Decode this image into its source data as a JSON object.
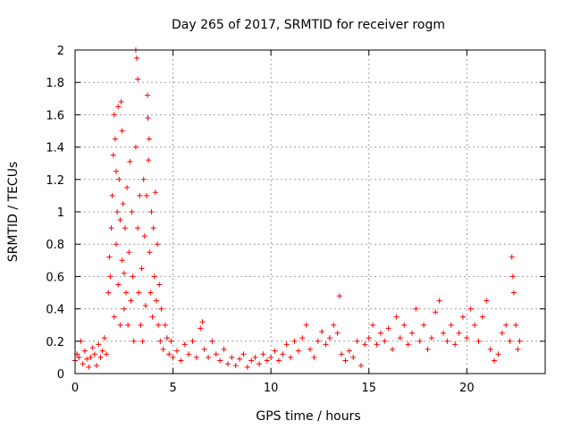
{
  "chart_data": {
    "type": "scatter",
    "title": "Day 265 of 2017, SRMTID for receiver rogm",
    "xlabel": "GPS time / hours",
    "ylabel": "SRMTID / TECUs",
    "xlim": [
      0,
      24
    ],
    "ylim": [
      0,
      2
    ],
    "grid": true,
    "marker": "plus",
    "color": "#ff0000",
    "x_ticks": [
      {
        "value": 0,
        "label": "0"
      },
      {
        "value": 5,
        "label": "5"
      },
      {
        "value": 10,
        "label": "10"
      },
      {
        "value": 15,
        "label": "15"
      },
      {
        "value": 20,
        "label": "20"
      }
    ],
    "y_ticks": [
      {
        "value": 0,
        "label": "0"
      },
      {
        "value": 0.2,
        "label": "0.2"
      },
      {
        "value": 0.4,
        "label": "0.4"
      },
      {
        "value": 0.6,
        "label": "0.6"
      },
      {
        "value": 0.8,
        "label": "0.8"
      },
      {
        "value": 1,
        "label": "1"
      },
      {
        "value": 1.2,
        "label": "1.2"
      },
      {
        "value": 1.4,
        "label": "1.4"
      },
      {
        "value": 1.6,
        "label": "1.6"
      },
      {
        "value": 1.8,
        "label": "1.8"
      },
      {
        "value": 2,
        "label": "2"
      }
    ],
    "series": [
      {
        "name": "SRMTID",
        "points": [
          [
            0.0,
            0.08
          ],
          [
            0.1,
            0.12
          ],
          [
            0.2,
            0.1
          ],
          [
            0.3,
            0.2
          ],
          [
            0.4,
            0.06
          ],
          [
            0.5,
            0.14
          ],
          [
            0.6,
            0.09
          ],
          [
            0.7,
            0.04
          ],
          [
            0.8,
            0.1
          ],
          [
            0.9,
            0.16
          ],
          [
            1.0,
            0.12
          ],
          [
            1.1,
            0.05
          ],
          [
            1.2,
            0.18
          ],
          [
            1.3,
            0.1
          ],
          [
            1.4,
            0.14
          ],
          [
            1.5,
            0.22
          ],
          [
            1.6,
            0.12
          ],
          [
            1.7,
            0.5
          ],
          [
            1.75,
            0.72
          ],
          [
            1.8,
            0.6
          ],
          [
            1.85,
            0.9
          ],
          [
            1.9,
            1.1
          ],
          [
            1.95,
            1.35
          ],
          [
            2.0,
            1.6
          ],
          [
            2.0,
            0.35
          ],
          [
            2.05,
            1.45
          ],
          [
            2.1,
            1.25
          ],
          [
            2.1,
            0.8
          ],
          [
            2.15,
            1.0
          ],
          [
            2.2,
            0.55
          ],
          [
            2.2,
            1.65
          ],
          [
            2.25,
            1.2
          ],
          [
            2.3,
            0.95
          ],
          [
            2.3,
            0.3
          ],
          [
            2.35,
            1.68
          ],
          [
            2.4,
            1.5
          ],
          [
            2.4,
            0.7
          ],
          [
            2.45,
            1.05
          ],
          [
            2.5,
            0.62
          ],
          [
            2.5,
            0.4
          ],
          [
            2.55,
            0.9
          ],
          [
            2.6,
            0.5
          ],
          [
            2.65,
            1.15
          ],
          [
            2.7,
            0.3
          ],
          [
            2.75,
            0.75
          ],
          [
            2.8,
            1.31
          ],
          [
            2.85,
            0.45
          ],
          [
            2.9,
            1.0
          ],
          [
            2.95,
            0.6
          ],
          [
            3.0,
            0.2
          ],
          [
            3.1,
            2.0
          ],
          [
            3.15,
            1.95
          ],
          [
            3.2,
            1.82
          ],
          [
            3.1,
            1.4
          ],
          [
            3.2,
            0.9
          ],
          [
            3.25,
            0.5
          ],
          [
            3.3,
            1.1
          ],
          [
            3.35,
            0.3
          ],
          [
            3.4,
            0.65
          ],
          [
            3.45,
            0.2
          ],
          [
            3.5,
            1.2
          ],
          [
            3.55,
            0.85
          ],
          [
            3.6,
            0.42
          ],
          [
            3.65,
            1.1
          ],
          [
            3.7,
            1.72
          ],
          [
            3.72,
            1.58
          ],
          [
            3.75,
            1.32
          ],
          [
            3.78,
            1.45
          ],
          [
            3.8,
            0.75
          ],
          [
            3.85,
            0.5
          ],
          [
            3.9,
            1.0
          ],
          [
            3.95,
            0.35
          ],
          [
            4.0,
            0.9
          ],
          [
            4.05,
            0.6
          ],
          [
            4.1,
            1.12
          ],
          [
            4.15,
            0.45
          ],
          [
            4.2,
            0.8
          ],
          [
            4.25,
            0.3
          ],
          [
            4.3,
            0.55
          ],
          [
            4.35,
            0.2
          ],
          [
            4.4,
            0.4
          ],
          [
            4.5,
            0.15
          ],
          [
            4.6,
            0.3
          ],
          [
            4.7,
            0.22
          ],
          [
            4.8,
            0.12
          ],
          [
            4.9,
            0.2
          ],
          [
            5.0,
            0.1
          ],
          [
            5.2,
            0.14
          ],
          [
            5.4,
            0.08
          ],
          [
            5.6,
            0.18
          ],
          [
            5.8,
            0.12
          ],
          [
            6.0,
            0.2
          ],
          [
            6.2,
            0.1
          ],
          [
            6.4,
            0.28
          ],
          [
            6.5,
            0.32
          ],
          [
            6.6,
            0.15
          ],
          [
            6.8,
            0.1
          ],
          [
            7.0,
            0.2
          ],
          [
            7.2,
            0.12
          ],
          [
            7.4,
            0.08
          ],
          [
            7.6,
            0.15
          ],
          [
            7.8,
            0.06
          ],
          [
            8.0,
            0.1
          ],
          [
            8.2,
            0.05
          ],
          [
            8.4,
            0.09
          ],
          [
            8.6,
            0.12
          ],
          [
            8.8,
            0.04
          ],
          [
            9.0,
            0.08
          ],
          [
            9.2,
            0.1
          ],
          [
            9.4,
            0.06
          ],
          [
            9.6,
            0.12
          ],
          [
            9.8,
            0.08
          ],
          [
            10.0,
            0.1
          ],
          [
            10.2,
            0.14
          ],
          [
            10.4,
            0.08
          ],
          [
            10.6,
            0.12
          ],
          [
            10.8,
            0.18
          ],
          [
            11.0,
            0.1
          ],
          [
            11.2,
            0.2
          ],
          [
            11.4,
            0.14
          ],
          [
            11.6,
            0.22
          ],
          [
            11.8,
            0.3
          ],
          [
            12.0,
            0.15
          ],
          [
            12.2,
            0.1
          ],
          [
            12.4,
            0.2
          ],
          [
            12.6,
            0.26
          ],
          [
            12.8,
            0.18
          ],
          [
            13.0,
            0.22
          ],
          [
            13.2,
            0.3
          ],
          [
            13.4,
            0.25
          ],
          [
            13.5,
            0.48
          ],
          [
            13.6,
            0.12
          ],
          [
            13.8,
            0.08
          ],
          [
            14.0,
            0.14
          ],
          [
            14.2,
            0.1
          ],
          [
            14.4,
            0.2
          ],
          [
            14.6,
            0.05
          ],
          [
            14.8,
            0.18
          ],
          [
            15.0,
            0.22
          ],
          [
            15.2,
            0.3
          ],
          [
            15.4,
            0.18
          ],
          [
            15.6,
            0.25
          ],
          [
            15.8,
            0.2
          ],
          [
            16.0,
            0.28
          ],
          [
            16.2,
            0.15
          ],
          [
            16.4,
            0.35
          ],
          [
            16.6,
            0.22
          ],
          [
            16.8,
            0.3
          ],
          [
            17.0,
            0.18
          ],
          [
            17.2,
            0.25
          ],
          [
            17.4,
            0.4
          ],
          [
            17.6,
            0.2
          ],
          [
            17.8,
            0.3
          ],
          [
            18.0,
            0.15
          ],
          [
            18.2,
            0.22
          ],
          [
            18.4,
            0.38
          ],
          [
            18.6,
            0.45
          ],
          [
            18.8,
            0.25
          ],
          [
            19.0,
            0.2
          ],
          [
            19.2,
            0.3
          ],
          [
            19.4,
            0.18
          ],
          [
            19.6,
            0.25
          ],
          [
            19.8,
            0.35
          ],
          [
            20.0,
            0.22
          ],
          [
            20.2,
            0.4
          ],
          [
            20.4,
            0.3
          ],
          [
            20.6,
            0.2
          ],
          [
            20.8,
            0.35
          ],
          [
            21.0,
            0.45
          ],
          [
            21.2,
            0.15
          ],
          [
            21.4,
            0.08
          ],
          [
            21.6,
            0.12
          ],
          [
            21.8,
            0.25
          ],
          [
            22.0,
            0.3
          ],
          [
            22.2,
            0.2
          ],
          [
            22.3,
            0.72
          ],
          [
            22.35,
            0.6
          ],
          [
            22.4,
            0.5
          ],
          [
            22.5,
            0.3
          ],
          [
            22.6,
            0.15
          ],
          [
            22.7,
            0.2
          ]
        ]
      }
    ]
  }
}
